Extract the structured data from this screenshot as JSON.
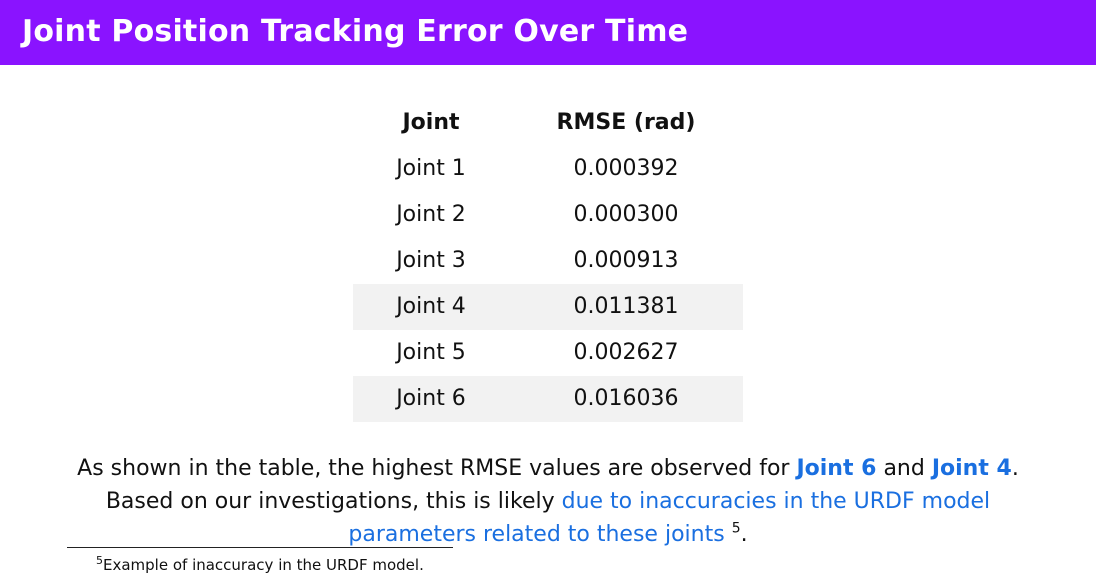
{
  "header": {
    "title": "Joint Position Tracking Error Over Time"
  },
  "table": {
    "headers": [
      "Joint",
      "RMSE (rad)"
    ],
    "rows": [
      {
        "joint": "Joint 1",
        "rmse": "0.000392"
      },
      {
        "joint": "Joint 2",
        "rmse": "0.000300"
      },
      {
        "joint": "Joint 3",
        "rmse": "0.000913"
      },
      {
        "joint": "Joint 4",
        "rmse": "0.011381"
      },
      {
        "joint": "Joint 5",
        "rmse": "0.002627"
      },
      {
        "joint": "Joint 6",
        "rmse": "0.016036"
      }
    ]
  },
  "paragraph": {
    "part1": "As shown in the table, the highest RMSE values are observed for ",
    "highlight1": "Joint 6",
    "part2": " and ",
    "highlight2": "Joint 4",
    "part3": ".",
    "part4": "Based on our investigations, this is likely ",
    "link_text": "due to inaccuracies in the URDF model parameters related to these joints",
    "footnote_ref": "5",
    "part5": "."
  },
  "footnote": {
    "marker": "5",
    "text": "Example of inaccuracy in the URDF model."
  },
  "colors": {
    "header_bg": "#8a13ff",
    "highlight": "#1a6fe0",
    "shaded_row": "#f2f2f2"
  }
}
